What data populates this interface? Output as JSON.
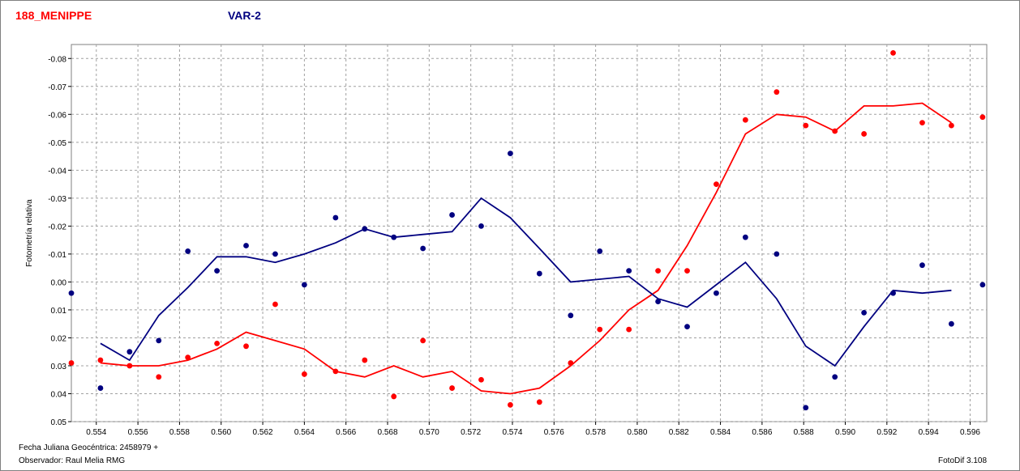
{
  "header": {
    "left_title": "188_MENIPPE",
    "right_title": "VAR-2"
  },
  "footer": {
    "fecha": "Fecha Juliana Geocéntrica: 2458979 +",
    "observador": "Observador: Raul Melia RMG",
    "version": "FotoDif 3.108"
  },
  "colors": {
    "red": "#ff0000",
    "blue": "#000080",
    "grid": "#a0a0a0"
  },
  "chart_data": {
    "type": "scatter",
    "xlabel": "",
    "ylabel": "Fotometría relativa",
    "xlim": [
      0.5528,
      0.5968
    ],
    "ylim": [
      0.05,
      -0.085
    ],
    "y_inverted": true,
    "grid": true,
    "x_ticks": [
      0.554,
      0.556,
      0.558,
      0.56,
      0.562,
      0.564,
      0.566,
      0.568,
      0.57,
      0.572,
      0.574,
      0.576,
      0.578,
      0.58,
      0.582,
      0.584,
      0.586,
      0.588,
      0.59,
      0.592,
      0.594,
      0.596
    ],
    "x_tick_labels": [
      "0.554",
      "0.556",
      "0.558",
      "0.560",
      "0.562",
      "0.564",
      "0.566",
      "0.568",
      "0.570",
      "0.572",
      "0.574",
      "0.576",
      "0.578",
      "0.580",
      "0.582",
      "0.584",
      "0.586",
      "0.588",
      "0.590",
      "0.592",
      "0.594",
      "0.596"
    ],
    "y_ticks": [
      -0.08,
      -0.07,
      -0.06,
      -0.05,
      -0.04,
      -0.03,
      -0.02,
      -0.01,
      0.0,
      0.01,
      0.02,
      0.03,
      0.04,
      0.05
    ],
    "y_tick_labels": [
      "-0.08",
      "-0.07",
      "-0.06",
      "-0.05",
      "-0.04",
      "-0.03",
      "-0.02",
      "-0.01",
      "0.00",
      "0.01",
      "0.02",
      "0.03",
      "0.04",
      "0.05"
    ],
    "series": [
      {
        "color": "#ff0000",
        "points_x": [
          0.5528,
          0.5542,
          0.5556,
          0.557,
          0.5584,
          0.5598,
          0.5612,
          0.5626,
          0.564,
          0.5655,
          0.5669,
          0.5683,
          0.5697,
          0.5711,
          0.5725,
          0.5739,
          0.5753,
          0.5768,
          0.5782,
          0.5796,
          0.581,
          0.5824,
          0.5838,
          0.5852,
          0.5867,
          0.5881,
          0.5895,
          0.5909,
          0.5923,
          0.5937,
          0.5951,
          0.5966
        ],
        "points_y": [
          0.029,
          0.028,
          0.03,
          0.034,
          0.027,
          0.022,
          0.023,
          0.008,
          0.033,
          0.032,
          0.028,
          0.041,
          0.021,
          0.038,
          0.035,
          0.044,
          0.043,
          0.029,
          0.017,
          0.017,
          -0.004,
          -0.004,
          -0.035,
          -0.058,
          -0.068,
          -0.056,
          -0.054,
          -0.053,
          -0.082,
          -0.057,
          -0.056,
          -0.059
        ],
        "line_x": [
          0.5542,
          0.5556,
          0.557,
          0.5584,
          0.5598,
          0.5612,
          0.5626,
          0.564,
          0.5655,
          0.5669,
          0.5683,
          0.5697,
          0.5711,
          0.5725,
          0.5739,
          0.5753,
          0.5768,
          0.5782,
          0.5796,
          0.581,
          0.5824,
          0.5838,
          0.5852,
          0.5867,
          0.5881,
          0.5895,
          0.5909,
          0.5923,
          0.5937,
          0.5951
        ],
        "line_y": [
          0.029,
          0.03,
          0.03,
          0.028,
          0.024,
          0.018,
          0.021,
          0.024,
          0.032,
          0.034,
          0.03,
          0.034,
          0.032,
          0.039,
          0.04,
          0.038,
          0.03,
          0.021,
          0.01,
          0.003,
          -0.013,
          -0.032,
          -0.053,
          -0.06,
          -0.059,
          -0.054,
          -0.063,
          -0.063,
          -0.064,
          -0.057
        ]
      },
      {
        "color": "#000080",
        "points_x": [
          0.5528,
          0.5542,
          0.5556,
          0.557,
          0.5584,
          0.5598,
          0.5612,
          0.5626,
          0.564,
          0.5655,
          0.5669,
          0.5683,
          0.5697,
          0.5711,
          0.5725,
          0.5739,
          0.5753,
          0.5768,
          0.5782,
          0.5796,
          0.581,
          0.5824,
          0.5838,
          0.5852,
          0.5867,
          0.5881,
          0.5895,
          0.5909,
          0.5923,
          0.5937,
          0.5951,
          0.5966
        ],
        "points_y": [
          0.004,
          0.038,
          0.025,
          0.021,
          -0.011,
          -0.004,
          -0.013,
          -0.01,
          0.001,
          -0.023,
          -0.019,
          -0.016,
          -0.012,
          -0.024,
          -0.02,
          -0.046,
          -0.003,
          0.012,
          -0.011,
          -0.004,
          0.007,
          0.016,
          0.004,
          -0.016,
          -0.01,
          0.045,
          0.034,
          0.011,
          0.004,
          -0.006,
          0.015,
          0.001
        ],
        "line_x": [
          0.5542,
          0.5556,
          0.557,
          0.5584,
          0.5598,
          0.5612,
          0.5626,
          0.564,
          0.5655,
          0.5669,
          0.5683,
          0.5697,
          0.5711,
          0.5725,
          0.5739,
          0.5753,
          0.5768,
          0.5782,
          0.5796,
          0.581,
          0.5824,
          0.5838,
          0.5852,
          0.5867,
          0.5881,
          0.5895,
          0.5909,
          0.5923,
          0.5937,
          0.5951
        ],
        "line_y": [
          0.022,
          0.028,
          0.012,
          0.002,
          -0.009,
          -0.009,
          -0.007,
          -0.01,
          -0.014,
          -0.019,
          -0.016,
          -0.017,
          -0.018,
          -0.03,
          -0.023,
          -0.012,
          0.0,
          -0.001,
          -0.002,
          0.006,
          0.009,
          0.001,
          -0.007,
          0.006,
          0.023,
          0.03,
          0.016,
          0.003,
          0.004,
          0.003
        ]
      }
    ]
  }
}
